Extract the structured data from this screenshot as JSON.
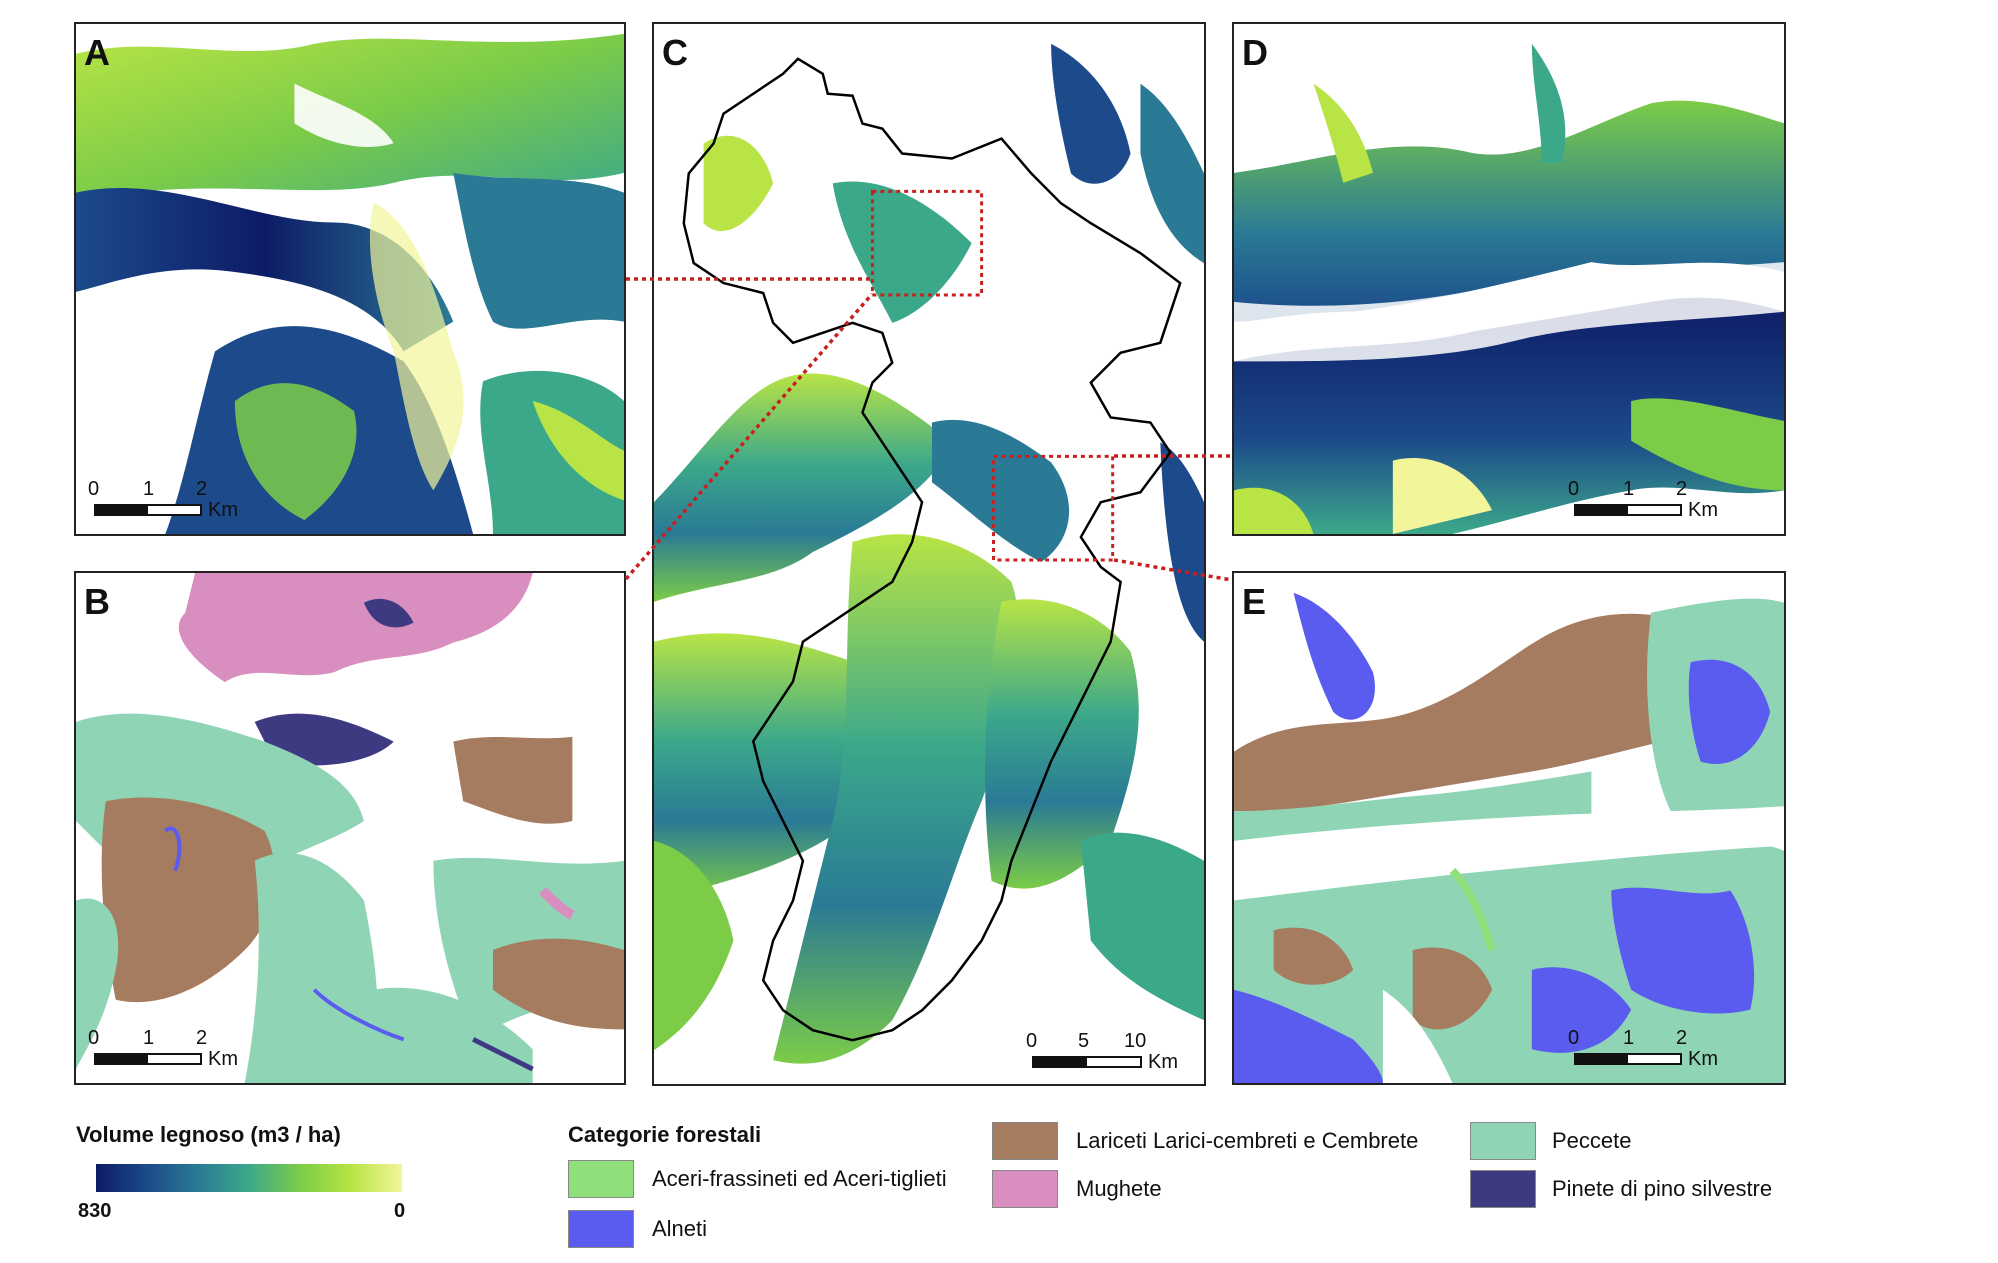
{
  "panels": {
    "A": {
      "label": "A",
      "scale": {
        "ticks": [
          "0",
          "1",
          "2"
        ],
        "unit": "Km"
      }
    },
    "B": {
      "label": "B",
      "scale": {
        "ticks": [
          "0",
          "1",
          "2"
        ],
        "unit": "Km"
      }
    },
    "C": {
      "label": "C",
      "scale": {
        "ticks": [
          "0",
          "5",
          "10"
        ],
        "unit": "Km"
      }
    },
    "D": {
      "label": "D",
      "scale": {
        "ticks": [
          "0",
          "1",
          "2"
        ],
        "unit": "Km"
      }
    },
    "E": {
      "label": "E",
      "scale": {
        "ticks": [
          "0",
          "1",
          "2"
        ],
        "unit": "Km"
      }
    }
  },
  "volume_legend": {
    "title": "Volume legnoso (m3 / ha)",
    "max_label": "830",
    "min_label": "0",
    "colors": [
      "#0d1b66",
      "#1c4a8a",
      "#2a7a95",
      "#3ca88a",
      "#7ccc48",
      "#b8e445",
      "#f2f59a"
    ]
  },
  "forest_legend": {
    "title": "Categorie forestali",
    "items": [
      {
        "label": "Aceri-frassineti ed Aceri-tiglieti",
        "color": "#8fe07a"
      },
      {
        "label": "Alneti",
        "color": "#5a5cf0"
      },
      {
        "label": "Lariceti Larici-cembreti e Cembrete",
        "color": "#a57c5f"
      },
      {
        "label": "Mughete",
        "color": "#d98ec0"
      },
      {
        "label": "Peccete",
        "color": "#8fd5b5"
      },
      {
        "label": "Pinete di pino silvestre",
        "color": "#3d3a82"
      }
    ]
  },
  "connector_color": "#c8201f"
}
